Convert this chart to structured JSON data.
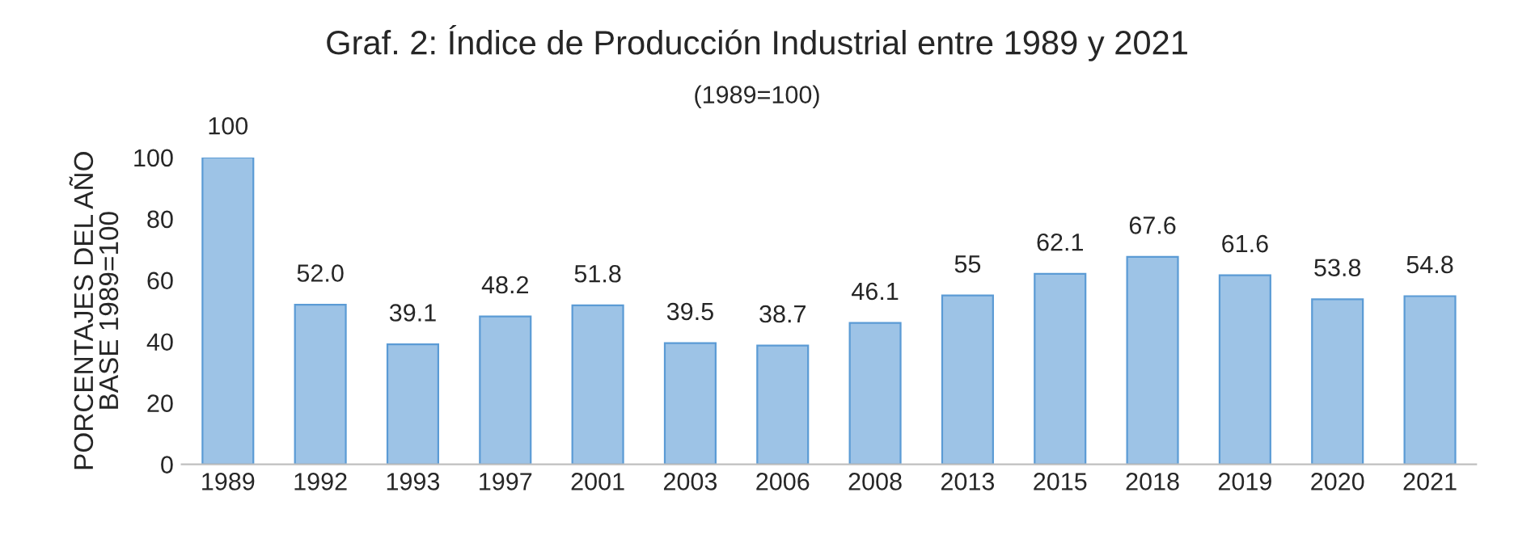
{
  "chart_data": {
    "type": "bar",
    "title": "Graf. 2: Índice de Producción Industrial entre 1989 y 2021",
    "subtitle": "(1989=100)",
    "ylabel": "PORCENTAJES DEL AÑO\nBASE 1989=100",
    "categories": [
      "1989",
      "1992",
      "1993",
      "1997",
      "2001",
      "2003",
      "2006",
      "2008",
      "2013",
      "2015",
      "2018",
      "2019",
      "2020",
      "2021"
    ],
    "values": [
      100,
      52.0,
      39.1,
      48.2,
      51.8,
      39.5,
      38.7,
      46.1,
      55,
      62.1,
      67.6,
      61.6,
      53.8,
      54.8
    ],
    "value_labels": [
      "100",
      "52.0",
      "39.1",
      "48.2",
      "51.8",
      "39.5",
      "38.7",
      "46.1",
      "55",
      "62.1",
      "67.6",
      "61.6",
      "53.8",
      "54.8"
    ],
    "color": "#9dc3e6",
    "ylim": [
      0,
      100
    ],
    "yticks": [
      0,
      20,
      40,
      60,
      80,
      100
    ],
    "grid": false,
    "legend": false
  }
}
